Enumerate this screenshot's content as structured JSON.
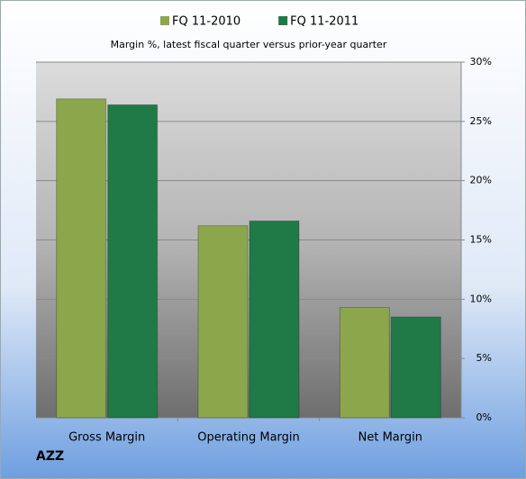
{
  "chart_data": {
    "type": "bar",
    "title": "Margin %,  latest fiscal quarter versus prior-year quarter",
    "annotation": "AZZ",
    "categories": [
      "Gross Margin",
      "Operating Margin",
      "Net Margin"
    ],
    "series": [
      {
        "name": "FQ 11-2010",
        "color": "#8ca64c",
        "values": [
          26.9,
          16.2,
          9.3
        ]
      },
      {
        "name": "FQ 11-2011",
        "color": "#1f7a47",
        "values": [
          26.4,
          16.6,
          8.5
        ]
      }
    ],
    "ylim": [
      0,
      30
    ],
    "yticks": [
      {
        "value": 0,
        "label": "0%"
      },
      {
        "value": 5,
        "label": "5%"
      },
      {
        "value": 10,
        "label": "10%"
      },
      {
        "value": 15,
        "label": "15%"
      },
      {
        "value": 20,
        "label": "20%"
      },
      {
        "value": 25,
        "label": "25%"
      },
      {
        "value": 30,
        "label": "30%"
      }
    ],
    "grid": true,
    "legend": "top"
  }
}
